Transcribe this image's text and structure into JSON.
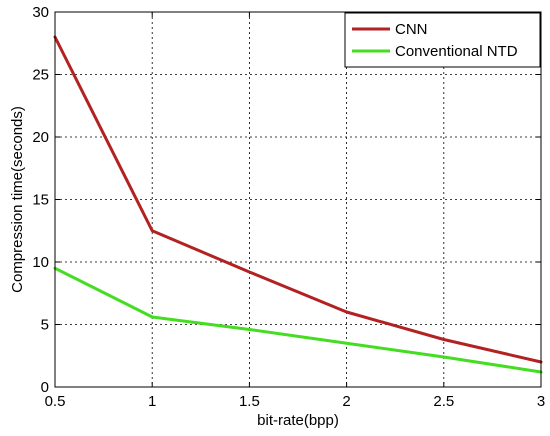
{
  "chart_data": {
    "type": "line",
    "title": "",
    "xlabel": "bit-rate(bpp)",
    "ylabel": "Compression time(seconds)",
    "xlim": [
      0.5,
      3
    ],
    "ylim": [
      0,
      30
    ],
    "xticks": [
      0.5,
      1,
      1.5,
      2,
      2.5,
      3
    ],
    "yticks": [
      0,
      5,
      10,
      15,
      20,
      25,
      30
    ],
    "xtick_labels": [
      "0.5",
      "1",
      "1.5",
      "2",
      "2.5",
      "3"
    ],
    "ytick_labels": [
      "0",
      "5",
      "10",
      "15",
      "20",
      "25",
      "30"
    ],
    "grid": true,
    "legend_position": "top-right",
    "series": [
      {
        "name": "CNN",
        "color": "#b22222",
        "x": [
          0.5,
          1,
          1.5,
          2,
          2.5,
          3
        ],
        "y": [
          28,
          12.5,
          9.2,
          6,
          3.8,
          2
        ]
      },
      {
        "name": "Conventional NTD",
        "color": "#44dd22",
        "x": [
          0.5,
          1,
          1.5,
          2,
          2.5,
          3
        ],
        "y": [
          9.5,
          5.6,
          4.6,
          3.5,
          2.4,
          1.2
        ]
      }
    ]
  }
}
